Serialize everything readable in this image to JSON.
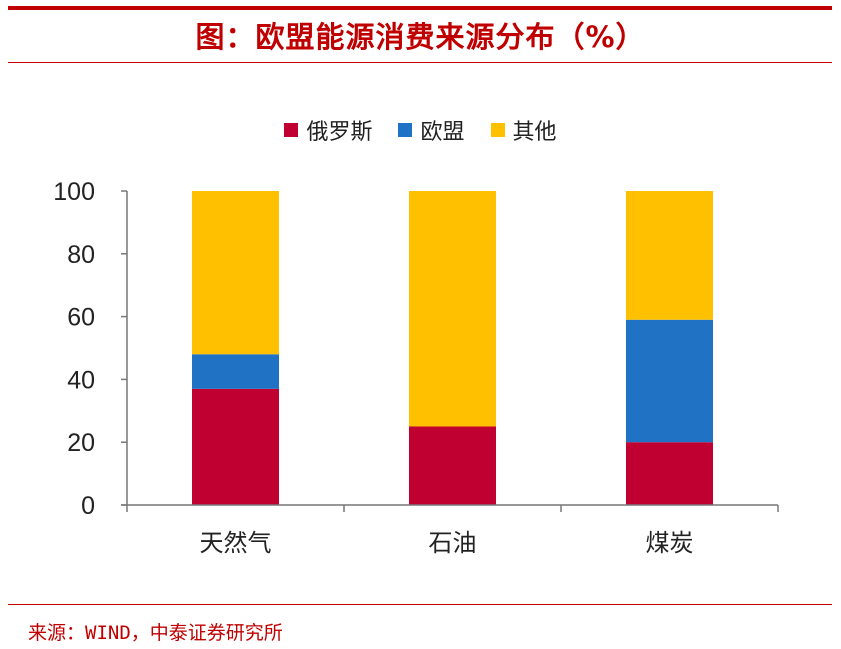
{
  "title": "图：欧盟能源消费来源分布（%）",
  "footer": "来源：WIND，中泰证券研究所",
  "chart_data": {
    "type": "bar",
    "stacked": true,
    "categories": [
      "天然气",
      "石油",
      "煤炭"
    ],
    "series": [
      {
        "name": "俄罗斯",
        "color": "#c00030",
        "values": [
          37,
          25,
          20
        ]
      },
      {
        "name": "欧盟",
        "color": "#1f72c4",
        "values": [
          11,
          0,
          39
        ]
      },
      {
        "name": "其他",
        "color": "#ffc000",
        "values": [
          52,
          75,
          41
        ]
      }
    ],
    "yticks": [
      0,
      20,
      40,
      60,
      80,
      100
    ],
    "ylim": [
      0,
      100
    ],
    "legend_position": "top",
    "grid": false
  }
}
